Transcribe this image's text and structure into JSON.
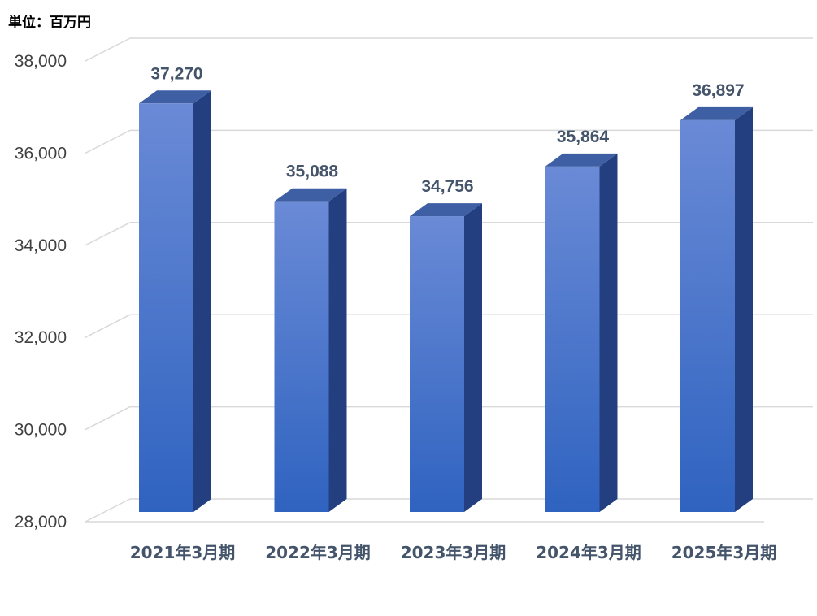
{
  "unit_label": "単位：百万円",
  "chart_data": {
    "type": "bar",
    "categories": [
      "2021年3月期",
      "2022年3月期",
      "2023年3月期",
      "2024年3月期",
      "2025年3月期"
    ],
    "values": [
      37270,
      35088,
      34756,
      35864,
      36897
    ],
    "data_labels": [
      "37,270",
      "35,088",
      "34,756",
      "35,864",
      "36,897"
    ],
    "ylim": [
      28000,
      38000
    ],
    "yticks": [
      28000,
      30000,
      32000,
      34000,
      36000,
      38000
    ],
    "ytick_labels": [
      "28,000",
      "30,000",
      "32,000",
      "34,000",
      "36,000",
      "38,000"
    ],
    "grid": true,
    "style": "3d-column",
    "colors": {
      "bar_front_top": "#6a8ad6",
      "bar_front_bottom": "#2f63c0",
      "bar_side": "#233f80",
      "bar_top": "#3f5fa5",
      "grid": "#d9d9d9",
      "label": "#44546a",
      "tick": "#404040"
    }
  }
}
